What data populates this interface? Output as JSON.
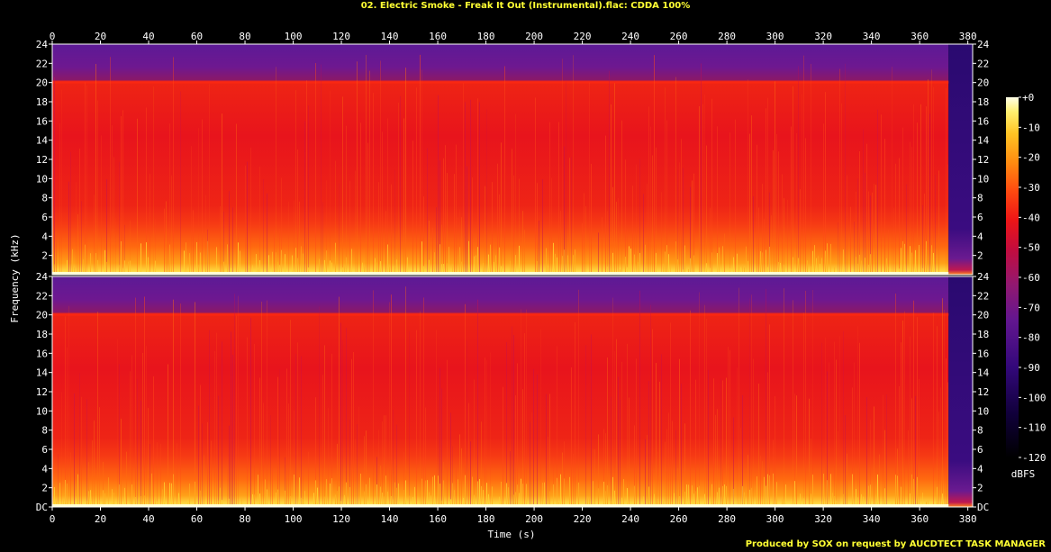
{
  "title": "02. Electric Smoke - Freak It Out (Instrumental).flac: CDDA 100%",
  "credit": "Produced by SOX on request by AUCDTECT TASK MANAGER",
  "chart_data": {
    "type": "heatmap",
    "xlabel": "Time (s)",
    "ylabel": "Frequency (kHz)",
    "xlim": [
      0,
      382
    ],
    "ylim": [
      0,
      24
    ],
    "x_ticks": [
      0,
      20,
      40,
      60,
      80,
      100,
      120,
      140,
      160,
      180,
      200,
      220,
      240,
      260,
      280,
      300,
      320,
      340,
      360,
      380
    ],
    "y_ticks": [
      "DC",
      "2",
      "4",
      "6",
      "8",
      "10",
      "12",
      "14",
      "16",
      "18",
      "20",
      "22",
      "24"
    ],
    "top_y_ticks": [
      "2",
      "4",
      "6",
      "8",
      "10",
      "12",
      "14",
      "16",
      "18",
      "20",
      "22",
      "24"
    ],
    "channels": 2,
    "track_end_s": 372,
    "lowpass_shelf_khz": 20,
    "colorbar": {
      "label": "dBFS",
      "ticks": [
        "+0",
        "-10",
        "-20",
        "-30",
        "-40",
        "-50",
        "-60",
        "-70",
        "-80",
        "-90",
        "-100",
        "-110",
        "-120"
      ],
      "range": [
        -120,
        0
      ]
    },
    "palette": [
      "#000000",
      "#14004a",
      "#3a0a8a",
      "#6a1a9a",
      "#9c1a70",
      "#cc0a3a",
      "#ee1a1a",
      "#ff4a10",
      "#ff8a10",
      "#ffc020",
      "#ffee60",
      "#ffffe0"
    ]
  }
}
